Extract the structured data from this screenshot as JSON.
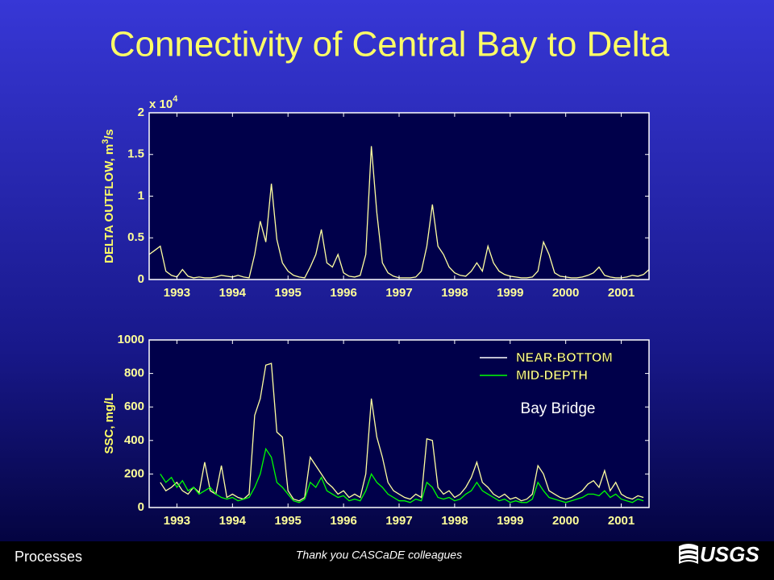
{
  "slide": {
    "title": "Connectivity of Central Bay to Delta",
    "footer_left": "Processes",
    "footer_center": "Thank you CASCaDE colleagues",
    "logo": "USGS"
  },
  "chart_data": [
    {
      "type": "line",
      "ylabel": "DELTA OUTFLOW, m",
      "ylabel_superscript": "3",
      "ylabel_suffix": "/s",
      "y_multiplier": "x 10",
      "y_multiplier_exponent": "4",
      "xlim": [
        1992.5,
        2001.5
      ],
      "xticks": [
        1993,
        1994,
        1995,
        1996,
        1997,
        1998,
        1999,
        2000,
        2001
      ],
      "ylim": [
        0,
        2
      ],
      "yticks": [
        0,
        0.5,
        1,
        1.5,
        2
      ],
      "grid": false,
      "x": [
        1992.5,
        1992.6,
        1992.7,
        1992.8,
        1992.9,
        1993.0,
        1993.1,
        1993.2,
        1993.3,
        1993.4,
        1993.5,
        1993.6,
        1993.7,
        1993.8,
        1993.9,
        1994.0,
        1994.1,
        1994.2,
        1994.3,
        1994.4,
        1994.5,
        1994.6,
        1994.7,
        1994.8,
        1994.9,
        1995.0,
        1995.1,
        1995.2,
        1995.3,
        1995.4,
        1995.5,
        1995.6,
        1995.7,
        1995.8,
        1995.9,
        1996.0,
        1996.1,
        1996.2,
        1996.3,
        1996.4,
        1996.5,
        1996.6,
        1996.7,
        1996.8,
        1996.9,
        1997.0,
        1997.1,
        1997.2,
        1997.3,
        1997.4,
        1997.5,
        1997.6,
        1997.7,
        1997.8,
        1997.9,
        1998.0,
        1998.1,
        1998.2,
        1998.3,
        1998.4,
        1998.5,
        1998.6,
        1998.7,
        1998.8,
        1998.9,
        1999.0,
        1999.1,
        1999.2,
        1999.3,
        1999.4,
        1999.5,
        1999.6,
        1999.7,
        1999.8,
        1999.9,
        2000.0,
        2000.1,
        2000.2,
        2000.3,
        2000.4,
        2000.5,
        2000.6,
        2000.7,
        2000.8,
        2000.9,
        2001.0,
        2001.1,
        2001.2,
        2001.3,
        2001.4,
        2001.5
      ],
      "series": [
        {
          "color": "#ffffa0",
          "values": [
            0.3,
            0.35,
            0.4,
            0.1,
            0.05,
            0.03,
            0.12,
            0.04,
            0.02,
            0.03,
            0.02,
            0.02,
            0.03,
            0.05,
            0.04,
            0.03,
            0.05,
            0.03,
            0.02,
            0.3,
            0.7,
            0.45,
            1.15,
            0.48,
            0.2,
            0.1,
            0.05,
            0.03,
            0.02,
            0.15,
            0.3,
            0.6,
            0.2,
            0.15,
            0.3,
            0.08,
            0.04,
            0.03,
            0.05,
            0.3,
            1.6,
            0.8,
            0.2,
            0.08,
            0.04,
            0.02,
            0.02,
            0.02,
            0.03,
            0.1,
            0.4,
            0.9,
            0.4,
            0.3,
            0.15,
            0.08,
            0.05,
            0.04,
            0.1,
            0.2,
            0.1,
            0.4,
            0.2,
            0.1,
            0.06,
            0.04,
            0.03,
            0.02,
            0.02,
            0.03,
            0.1,
            0.45,
            0.3,
            0.08,
            0.04,
            0.03,
            0.02,
            0.02,
            0.03,
            0.05,
            0.08,
            0.15,
            0.05,
            0.03,
            0.02,
            0.02,
            0.03,
            0.05,
            0.04,
            0.06,
            0.12
          ]
        }
      ]
    },
    {
      "type": "line",
      "ylabel": "SSC, mg/L",
      "annotation": "Bay Bridge",
      "legend": "top-right",
      "xlim": [
        1992.5,
        2001.5
      ],
      "xticks": [
        1993,
        1994,
        1995,
        1996,
        1997,
        1998,
        1999,
        2000,
        2001
      ],
      "ylim": [
        0,
        1000
      ],
      "yticks": [
        0,
        200,
        400,
        600,
        800,
        1000
      ],
      "grid": false,
      "x": [
        1992.5,
        1992.6,
        1992.7,
        1992.8,
        1992.9,
        1993.0,
        1993.1,
        1993.2,
        1993.3,
        1993.4,
        1993.5,
        1993.6,
        1993.7,
        1993.8,
        1993.9,
        1994.0,
        1994.1,
        1994.2,
        1994.3,
        1994.4,
        1994.5,
        1994.6,
        1994.7,
        1994.8,
        1994.9,
        1995.0,
        1995.1,
        1995.2,
        1995.3,
        1995.4,
        1995.5,
        1995.6,
        1995.7,
        1995.8,
        1995.9,
        1996.0,
        1996.1,
        1996.2,
        1996.3,
        1996.4,
        1996.5,
        1996.6,
        1996.7,
        1996.8,
        1996.9,
        1997.0,
        1997.1,
        1997.2,
        1997.3,
        1997.4,
        1997.5,
        1997.6,
        1997.7,
        1997.8,
        1997.9,
        1998.0,
        1998.1,
        1998.2,
        1998.3,
        1998.4,
        1998.5,
        1998.6,
        1998.7,
        1998.8,
        1998.9,
        1999.0,
        1999.1,
        1999.2,
        1999.3,
        1999.4,
        1999.5,
        1999.6,
        1999.7,
        1999.8,
        1999.9,
        2000.0,
        2000.1,
        2000.2,
        2000.3,
        2000.4,
        2000.5,
        2000.6,
        2000.7,
        2000.8,
        2000.9,
        2001.0,
        2001.1,
        2001.2,
        2001.3,
        2001.4,
        2001.5
      ],
      "series": [
        {
          "name": "NEAR-BOTTOM",
          "color": "#ffffa0",
          "legend_color": "#ffffff",
          "values": [
            null,
            null,
            150,
            100,
            120,
            150,
            100,
            80,
            120,
            90,
            270,
            100,
            80,
            250,
            60,
            80,
            60,
            50,
            80,
            550,
            650,
            850,
            860,
            450,
            420,
            100,
            50,
            40,
            60,
            300,
            250,
            200,
            150,
            120,
            80,
            100,
            60,
            80,
            60,
            200,
            650,
            420,
            300,
            150,
            100,
            80,
            60,
            50,
            80,
            60,
            410,
            400,
            120,
            80,
            100,
            60,
            80,
            120,
            180,
            270,
            150,
            120,
            80,
            60,
            80,
            50,
            60,
            40,
            50,
            80,
            250,
            200,
            100,
            80,
            60,
            50,
            60,
            80,
            100,
            140,
            160,
            120,
            220,
            100,
            150,
            80,
            60,
            50,
            70,
            60,
            null
          ]
        },
        {
          "name": "MID-DEPTH",
          "color": "#00ff00",
          "values": [
            null,
            null,
            200,
            150,
            180,
            120,
            160,
            100,
            120,
            80,
            100,
            120,
            80,
            60,
            50,
            60,
            40,
            50,
            60,
            120,
            200,
            350,
            300,
            150,
            120,
            80,
            40,
            30,
            50,
            150,
            120,
            180,
            100,
            80,
            60,
            70,
            40,
            50,
            40,
            100,
            200,
            150,
            120,
            80,
            60,
            40,
            40,
            30,
            50,
            40,
            150,
            120,
            60,
            50,
            60,
            40,
            50,
            80,
            100,
            150,
            100,
            80,
            60,
            40,
            50,
            30,
            40,
            30,
            30,
            50,
            150,
            100,
            60,
            50,
            40,
            30,
            40,
            50,
            60,
            80,
            80,
            70,
            100,
            60,
            80,
            50,
            40,
            30,
            50,
            40,
            null
          ]
        }
      ]
    }
  ]
}
